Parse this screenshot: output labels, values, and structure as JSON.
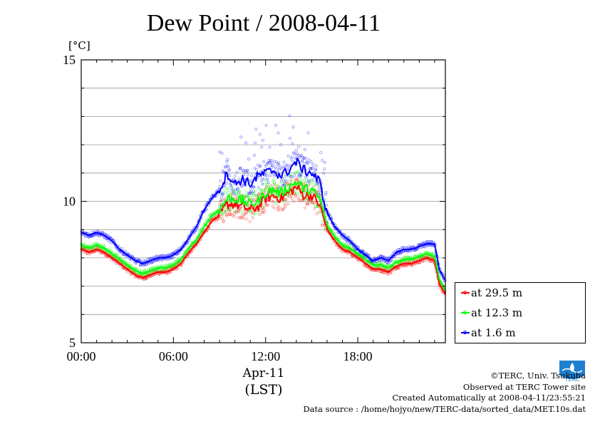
{
  "title": "Dew Point / 2008-04-11",
  "unit_label": "[°C]",
  "x_unit_date": "Apr-11",
  "x_unit_tz": "(LST)",
  "legend": [
    {
      "label": "at 29.5 m",
      "color": "#ff0000"
    },
    {
      "label": "at 12.3 m",
      "color": "#00ff00"
    },
    {
      "label": "at 1.6 m",
      "color": "#0000ff"
    }
  ],
  "credits": {
    "line1": "©TERC, Univ. Tsukuba",
    "line2": "Observed at TERC Tower site",
    "line3": "Created Automatically at 2008-04-11/23:55:21",
    "line4": "Data source : /home/hojyo/new/TERC-data/sorted_data/MET.10s.dat"
  },
  "logo_text": "TERC",
  "chart_data": {
    "type": "line",
    "title": "Dew Point / 2008-04-11",
    "xlabel": "Apr-11 (LST)",
    "ylabel": "[°C]",
    "x_range_hours": [
      0,
      23.7
    ],
    "ylim": [
      5,
      15
    ],
    "y_ticks": [
      5,
      10,
      15
    ],
    "y_minor_step": 1,
    "x_ticks": [
      {
        "hour": 0,
        "label": "00:00"
      },
      {
        "hour": 6,
        "label": "06:00"
      },
      {
        "hour": 12,
        "label": "12:00"
      },
      {
        "hour": 18,
        "label": "18:00"
      }
    ],
    "grid": true,
    "legend_position": "right-bottom",
    "series": [
      {
        "name": "at 29.5 m",
        "color": "#ff0000",
        "x": [
          0,
          0.5,
          1,
          1.5,
          2,
          2.5,
          3,
          3.5,
          4,
          4.5,
          5,
          5.5,
          6,
          6.5,
          7,
          7.5,
          8,
          8.5,
          9,
          9.5,
          10,
          10.5,
          11,
          11.5,
          12,
          12.5,
          13,
          13.5,
          14,
          14.5,
          15,
          15.5,
          16,
          16.5,
          17,
          17.5,
          18,
          18.5,
          19,
          19.5,
          20,
          20.5,
          21,
          21.5,
          22,
          22.5,
          23,
          23.3,
          23.7
        ],
        "y": [
          8.3,
          8.2,
          8.3,
          8.2,
          8.0,
          7.8,
          7.6,
          7.4,
          7.3,
          7.4,
          7.5,
          7.5,
          7.6,
          7.8,
          8.2,
          8.5,
          8.9,
          9.3,
          9.5,
          9.9,
          9.9,
          9.8,
          9.7,
          9.8,
          10.1,
          10.2,
          10.1,
          10.3,
          10.5,
          10.2,
          10.2,
          9.9,
          9.0,
          8.6,
          8.3,
          8.2,
          8.0,
          7.8,
          7.6,
          7.6,
          7.5,
          7.7,
          7.8,
          7.8,
          7.9,
          8.0,
          7.9,
          7.1,
          6.7
        ]
      },
      {
        "name": "at 12.3 m",
        "color": "#00ff00",
        "x": [
          0,
          0.5,
          1,
          1.5,
          2,
          2.5,
          3,
          3.5,
          4,
          4.5,
          5,
          5.5,
          6,
          6.5,
          7,
          7.5,
          8,
          8.5,
          9,
          9.5,
          10,
          10.5,
          11,
          11.5,
          12,
          12.5,
          13,
          13.5,
          14,
          14.5,
          15,
          15.5,
          16,
          16.5,
          17,
          17.5,
          18,
          18.5,
          19,
          19.5,
          20,
          20.5,
          21,
          21.5,
          22,
          22.5,
          23,
          23.3,
          23.7
        ],
        "y": [
          8.45,
          8.35,
          8.45,
          8.35,
          8.15,
          7.95,
          7.75,
          7.55,
          7.45,
          7.55,
          7.65,
          7.65,
          7.75,
          7.95,
          8.35,
          8.65,
          9.1,
          9.5,
          9.7,
          10.1,
          10.1,
          10.0,
          9.9,
          10.0,
          10.3,
          10.4,
          10.3,
          10.5,
          10.7,
          10.45,
          10.4,
          10.1,
          9.15,
          8.75,
          8.45,
          8.35,
          8.15,
          7.95,
          7.75,
          7.75,
          7.65,
          7.85,
          7.95,
          7.95,
          8.05,
          8.15,
          8.05,
          7.25,
          6.85
        ]
      },
      {
        "name": "at 1.6 m",
        "color": "#0000ff",
        "x": [
          0,
          0.5,
          1,
          1.5,
          2,
          2.5,
          3,
          3.5,
          4,
          4.5,
          5,
          5.5,
          6,
          6.5,
          7,
          7.5,
          8,
          8.5,
          9,
          9.5,
          10,
          10.5,
          11,
          11.5,
          12,
          12.5,
          13,
          13.5,
          14,
          14.5,
          15,
          15.5,
          16,
          16.5,
          17,
          17.5,
          18,
          18.5,
          19,
          19.5,
          20,
          20.5,
          21,
          21.5,
          22,
          22.5,
          23,
          23.3,
          23.7
        ],
        "y": [
          8.9,
          8.8,
          8.9,
          8.8,
          8.6,
          8.3,
          8.1,
          7.9,
          7.8,
          7.9,
          8.0,
          8.0,
          8.1,
          8.3,
          8.7,
          9.1,
          9.7,
          10.1,
          10.4,
          11.0,
          10.6,
          10.8,
          10.6,
          10.9,
          11.0,
          11.1,
          10.9,
          11.1,
          11.4,
          11.1,
          11.0,
          10.7,
          9.6,
          9.1,
          8.8,
          8.6,
          8.3,
          8.1,
          7.9,
          8.0,
          7.9,
          8.2,
          8.3,
          8.3,
          8.4,
          8.5,
          8.5,
          7.6,
          7.2
        ]
      }
    ]
  }
}
